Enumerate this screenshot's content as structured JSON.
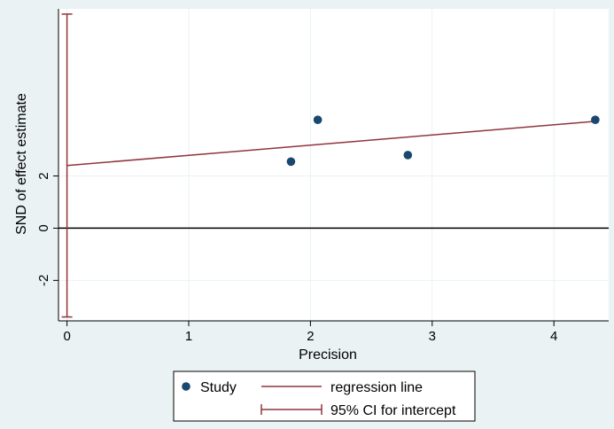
{
  "chart_data": {
    "type": "scatter",
    "xlabel": "Precision",
    "ylabel": "SND of effect estimate",
    "x_ticks": [
      0,
      1,
      2,
      3,
      4
    ],
    "x_tick_labels": [
      "0",
      "1",
      "2",
      "3",
      "4"
    ],
    "y_ticks": [
      -2,
      0,
      2
    ],
    "y_tick_labels": [
      "-2",
      "0",
      "2"
    ],
    "xlim": [
      -0.07,
      4.45
    ],
    "ylim": [
      -3.55,
      8.4
    ],
    "grid": true,
    "series": [
      {
        "name": "Study",
        "points": [
          {
            "x": 1.84,
            "y": 2.55
          },
          {
            "x": 2.06,
            "y": 4.15
          },
          {
            "x": 2.8,
            "y": 2.8
          },
          {
            "x": 4.34,
            "y": 4.15
          }
        ]
      }
    ],
    "regression_line": {
      "name": "regression line",
      "intercept": 2.4,
      "slope": 0.39
    },
    "intercept_ci": {
      "name": "95% CI for intercept",
      "x": 0,
      "lower": -3.4,
      "upper": 8.2
    },
    "reference_line_y": 0,
    "legend": {
      "position": "bottom",
      "entries": [
        "Study",
        "regression line",
        "95% CI for intercept"
      ]
    },
    "colors": {
      "point": "#1a476f",
      "line": "#90353b",
      "plot_bg": "#ffffff",
      "page_bg": "#eaf2f3",
      "grid": "#eaf2f3"
    }
  }
}
